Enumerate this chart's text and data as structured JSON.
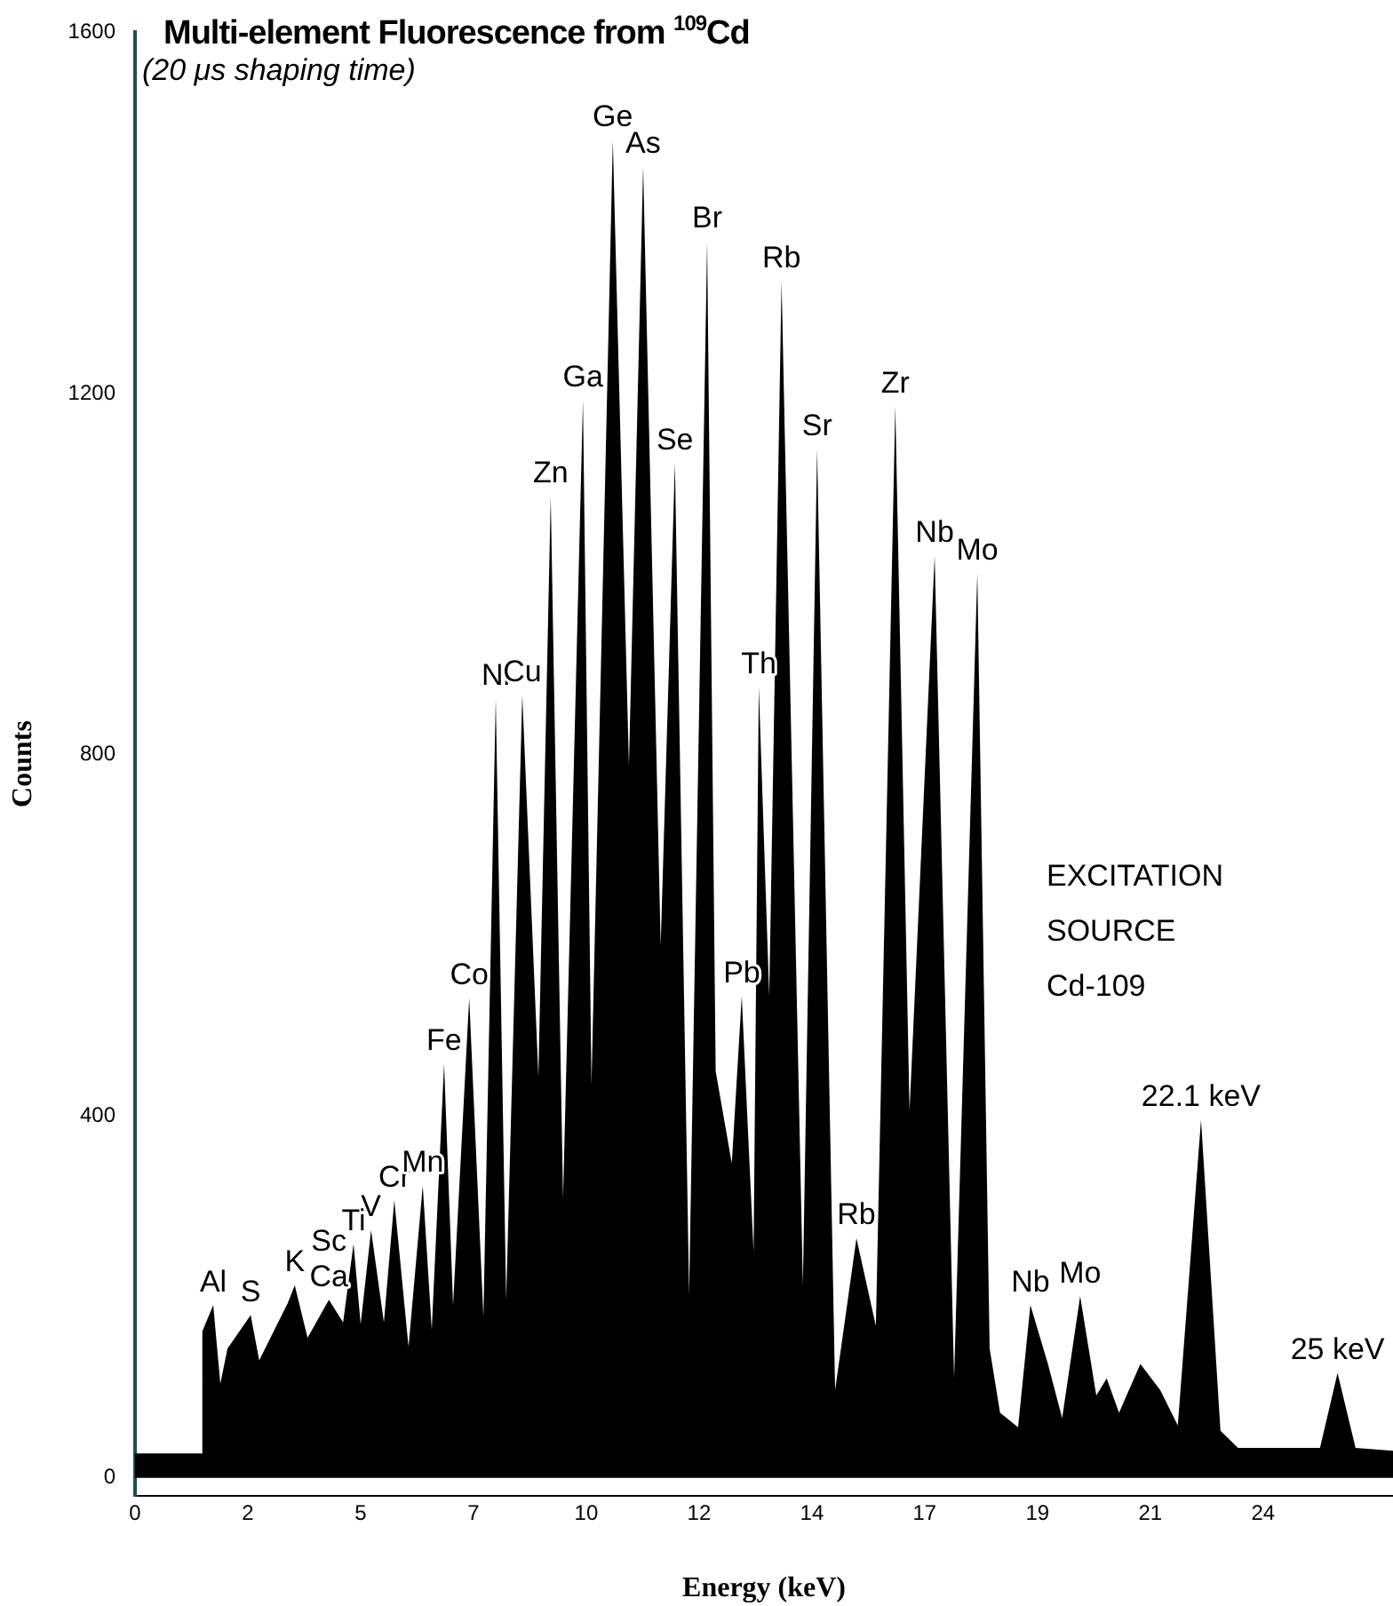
{
  "chart_data": {
    "type": "area",
    "title": "Multi-element Fluorescence from $^{109}$Cd",
    "subtitle": "(20 μs shaping time)",
    "xlabel": "Energy (keV)",
    "ylabel": "Counts",
    "x": [
      0,
      1.39,
      1.42,
      1.65,
      1.8,
      1.95,
      2.44,
      2.62,
      3.22,
      3.37,
      3.64,
      4.09,
      4.39,
      4.61,
      4.76,
      4.98,
      5.25,
      5.47,
      5.77,
      6.07,
      6.26,
      6.52,
      6.71,
      7.05,
      7.35,
      7.61,
      7.83,
      8.17,
      8.51,
      8.77,
      9.03,
      9.45,
      9.63,
      10.08,
      10.42,
      10.72,
      11.09,
      11.39,
      11.69,
      12.07,
      12.25,
      12.59,
      12.8,
      13.05,
      13.16,
      13.38,
      13.64,
      14.09,
      14.39,
      14.77,
      15.22,
      15.63,
      16.04,
      16.34,
      16.87,
      17.28,
      17.77,
      18.03,
      18.25,
      18.63,
      18.89,
      19.26,
      19.56,
      19.94,
      20.28,
      20.5,
      20.76,
      21.21,
      21.63,
      22.0,
      22.49,
      22.9,
      23.27,
      25.0,
      25.37,
      25.75,
      26.54
    ],
    "values": [
      27,
      27,
      162,
      191,
      104,
      143,
      180,
      130,
      193,
      213,
      155,
      197,
      172,
      259,
      170,
      274,
      172,
      307,
      145,
      323,
      164,
      458,
      191,
      531,
      178,
      862,
      197,
      866,
      444,
      1086,
      309,
      1192,
      435,
      1480,
      788,
      1451,
      589,
      1123,
      203,
      1368,
      450,
      348,
      533,
      250,
      875,
      533,
      1324,
      213,
      1138,
      97,
      265,
      168,
      1186,
      406,
      1020,
      110,
      1001,
      143,
      72,
      56,
      191,
      126,
      66,
      201,
      91,
      110,
      72,
      126,
      97,
      58,
      396,
      52,
      33,
      33,
      116,
      33,
      30
    ],
    "color": "#000000",
    "xlim": [
      0,
      26.54
    ],
    "xticks": [
      0,
      {
        "value": 2.38,
        "label": "2"
      },
      {
        "value": 4.76,
        "label": "5"
      },
      {
        "value": 7.14,
        "label": "7"
      },
      {
        "value": 9.52,
        "label": "10"
      },
      {
        "value": 11.9,
        "label": "12"
      },
      {
        "value": 14.28,
        "label": "14"
      },
      {
        "value": 16.66,
        "label": "17"
      },
      {
        "value": 19.04,
        "label": "19"
      },
      {
        "value": 21.42,
        "label": "21"
      },
      {
        "value": 23.8,
        "label": "24"
      }
    ],
    "ylim": [
      -20,
      1600
    ],
    "yticks": [
      0,
      400,
      800,
      1200,
      1600
    ],
    "annotations": [
      {
        "text": "Al",
        "x": 1.65,
        "y": 191
      },
      {
        "text": "S",
        "x": 2.44,
        "y": 180
      },
      {
        "text": "K",
        "x": 3.37,
        "y": 213
      },
      {
        "text": "Ca",
        "x": 4.09,
        "y": 197
      },
      {
        "text": "Sc",
        "x": 4.09,
        "y": 197
      },
      {
        "text": "Ti",
        "x": 4.61,
        "y": 259
      },
      {
        "text": "V",
        "x": 4.98,
        "y": 274
      },
      {
        "text": "Cr",
        "x": 5.47,
        "y": 307
      },
      {
        "text": "Mn",
        "x": 6.07,
        "y": 323
      },
      {
        "text": "Fe",
        "x": 6.52,
        "y": 458
      },
      {
        "text": "Co",
        "x": 7.05,
        "y": 531
      },
      {
        "text": "Ni",
        "x": 7.61,
        "y": 862
      },
      {
        "text": "Cu",
        "x": 8.17,
        "y": 866
      },
      {
        "text": "Zn",
        "x": 8.77,
        "y": 1086
      },
      {
        "text": "Ga",
        "x": 9.45,
        "y": 1192
      },
      {
        "text": "Ge",
        "x": 10.08,
        "y": 1480
      },
      {
        "text": "As",
        "x": 10.72,
        "y": 1451
      },
      {
        "text": "Se",
        "x": 11.39,
        "y": 1123
      },
      {
        "text": "Br",
        "x": 12.07,
        "y": 1368
      },
      {
        "text": "Th",
        "x": 13.16,
        "y": 875
      },
      {
        "text": "Pb",
        "x": 12.8,
        "y": 533
      },
      {
        "text": "Rb",
        "x": 13.64,
        "y": 1324
      },
      {
        "text": "Sr",
        "x": 14.39,
        "y": 1138
      },
      {
        "text": "Zr",
        "x": 16.04,
        "y": 1186
      },
      {
        "text": "Nb",
        "x": 16.87,
        "y": 1020
      },
      {
        "text": "Mo",
        "x": 17.77,
        "y": 1001
      },
      {
        "text": "Rb",
        "x": 15.22,
        "y": 265
      },
      {
        "text": "Nb",
        "x": 18.89,
        "y": 191
      },
      {
        "text": "Mo",
        "x": 19.94,
        "y": 201
      },
      {
        "text": "22.1 keV",
        "x": 22.49,
        "y": 396
      },
      {
        "text": "25 keV",
        "x": 25.37,
        "y": 116
      },
      "EXCITATION\nSOURCE\nCd-109"
    ]
  }
}
